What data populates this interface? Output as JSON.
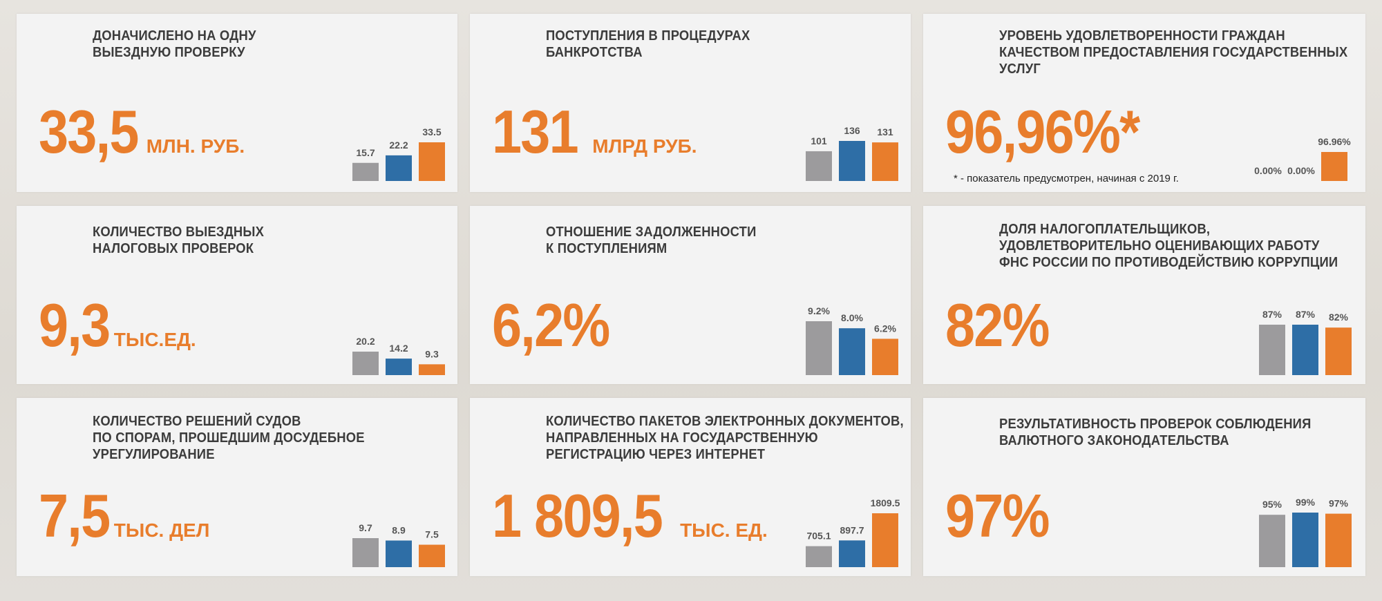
{
  "colors": {
    "grey": "#9c9b9d",
    "blue": "#2e6ea6",
    "orange": "#e87d2c",
    "title": "#3c3c3c"
  },
  "cards": [
    {
      "title_lines": [
        "ДОНАЧИСЛЕНО НА ОДНУ",
        "ВЫЕЗДНУЮ ПРОВЕРКУ"
      ],
      "big": "33,5",
      "unit": "МЛН. РУБ.",
      "note": ""
    },
    {
      "title_lines": [
        "ПОСТУПЛЕНИЯ В ПРОЦЕДУРАХ",
        "БАНКРОТСТВА"
      ],
      "big": "131",
      "unit": "МЛРД РУБ.",
      "note": ""
    },
    {
      "title_lines": [
        "УРОВЕНЬ УДОВЛЕТВОРЕННОСТИ ГРАЖДАН",
        "КАЧЕСТВОМ ПРЕДОСТАВЛЕНИЯ ГОСУДАРСТВЕННЫХ",
        "УСЛУГ"
      ],
      "big": "96,96%*",
      "unit": "",
      "note": "* - показатель предусмотрен, начиная с 2019 г."
    },
    {
      "title_lines": [
        "КОЛИЧЕСТВО ВЫЕЗДНЫХ",
        "НАЛОГОВЫХ ПРОВЕРОК"
      ],
      "big": "9,3",
      "unit": "ТЫС.ЕД.",
      "note": ""
    },
    {
      "title_lines": [
        "ОТНОШЕНИЕ ЗАДОЛЖЕННОСТИ",
        "К ПОСТУПЛЕНИЯМ"
      ],
      "big": "6,2%",
      "unit": "",
      "note": ""
    },
    {
      "title_lines": [
        "ДОЛЯ НАЛОГОПЛАТЕЛЬЩИКОВ,",
        "УДОВЛЕТВОРИТЕЛЬНО ОЦЕНИВАЮЩИХ РАБОТУ",
        "ФНС РОССИИ ПО ПРОТИВОДЕЙСТВИЮ КОРРУПЦИИ"
      ],
      "big": "82%",
      "unit": "",
      "note": ""
    },
    {
      "title_lines": [
        "КОЛИЧЕСТВО РЕШЕНИЙ СУДОВ",
        "ПО СПОРАМ, ПРОШЕДШИМ ДОСУДЕБНОЕ",
        "УРЕГУЛИРОВАНИЕ"
      ],
      "big": "7,5",
      "unit": "ТЫС. ДЕЛ",
      "note": ""
    },
    {
      "title_lines": [
        "КОЛИЧЕСТВО ПАКЕТОВ ЭЛЕКТРОННЫХ ДОКУМЕНТОВ,",
        "НАПРАВЛЕННЫХ НА ГОСУДАРСТВЕННУЮ",
        "РЕГИСТРАЦИЮ ЧЕРЕЗ ИНТЕРНЕТ"
      ],
      "big": "1 809,5",
      "unit": "ТЫС. ЕД.",
      "note": ""
    },
    {
      "title_lines": [
        "РЕЗУЛЬТАТИВНОСТЬ ПРОВЕРОК СОБЛЮДЕНИЯ",
        "ВАЛЮТНОГО ЗАКОНОДАТЕЛЬСТВА"
      ],
      "big": "97%",
      "unit": "",
      "note": ""
    }
  ],
  "chart_data": [
    {
      "type": "bar",
      "values": [
        15.7,
        22.2,
        33.5
      ],
      "labels": [
        "15.7",
        "22.2",
        "33.5"
      ]
    },
    {
      "type": "bar",
      "values": [
        101,
        136,
        131
      ],
      "labels": [
        "101",
        "136",
        "131"
      ]
    },
    {
      "type": "bar",
      "values": [
        0,
        0,
        96.96
      ],
      "labels": [
        "0.00%",
        "0.00%",
        "96.96%"
      ]
    },
    {
      "type": "bar",
      "values": [
        20.2,
        14.2,
        9.3
      ],
      "labels": [
        "20.2",
        "14.2",
        "9.3"
      ]
    },
    {
      "type": "bar",
      "values": [
        9.2,
        8.0,
        6.2
      ],
      "labels": [
        "9.2%",
        "8.0%",
        "6.2%"
      ]
    },
    {
      "type": "bar",
      "values": [
        87,
        87,
        82
      ],
      "labels": [
        "87%",
        "87%",
        "82%"
      ]
    },
    {
      "type": "bar",
      "values": [
        9.7,
        8.9,
        7.5
      ],
      "labels": [
        "9.7",
        "8.9",
        "7.5"
      ]
    },
    {
      "type": "bar",
      "values": [
        705.1,
        897.7,
        1809.5
      ],
      "labels": [
        "705.1",
        "897.7",
        "1809.5"
      ]
    },
    {
      "type": "bar",
      "values": [
        95,
        99,
        97
      ],
      "labels": [
        "95%",
        "99%",
        "97%"
      ]
    }
  ]
}
